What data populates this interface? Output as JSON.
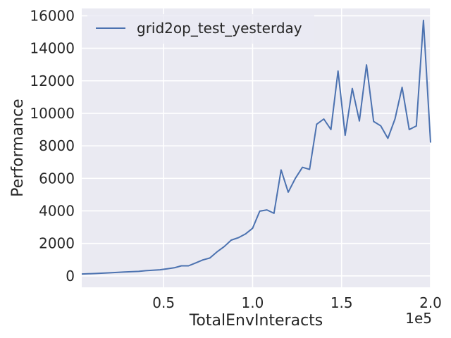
{
  "chart_data": {
    "type": "line",
    "title": "",
    "xlabel": "TotalEnvInteracts",
    "ylabel": "Performance",
    "x_offset_label": "1e5",
    "x_scale_factor": 100000,
    "xlim": [
      4000,
      200000
    ],
    "ylim": [
      -700,
      16450
    ],
    "x_ticks": [
      50000,
      100000,
      150000,
      200000
    ],
    "x_tick_labels": [
      "0.5",
      "1.0",
      "1.5",
      "2.0"
    ],
    "y_ticks": [
      0,
      2000,
      4000,
      6000,
      8000,
      10000,
      12000,
      14000,
      16000
    ],
    "y_tick_labels": [
      "0",
      "2000",
      "4000",
      "6000",
      "8000",
      "10000",
      "12000",
      "14000",
      "16000"
    ],
    "grid": true,
    "background_color": "#eaeaf2",
    "grid_color": "#ffffff",
    "legend_position": "top-left",
    "series": [
      {
        "name": "grid2op_test_yesterday",
        "color": "#4c72b0",
        "x": [
          4000,
          12000,
          20000,
          28000,
          36000,
          40000,
          48000,
          52000,
          56000,
          60000,
          64000,
          68000,
          72000,
          76000,
          80000,
          84000,
          88000,
          92000,
          96000,
          100000,
          104000,
          108000,
          112000,
          116000,
          120000,
          124000,
          128000,
          132000,
          136000,
          140000,
          144000,
          148000,
          152000,
          156000,
          160000,
          164000,
          168000,
          172000,
          176000,
          180000,
          184000,
          188000,
          192000,
          196000,
          200000
        ],
        "y": [
          120,
          150,
          190,
          240,
          280,
          320,
          380,
          440,
          500,
          620,
          620,
          800,
          980,
          1100,
          1480,
          1800,
          2200,
          2350,
          2580,
          2930,
          3980,
          4060,
          3850,
          6520,
          5150,
          6000,
          6680,
          6550,
          9330,
          9650,
          9000,
          12600,
          8650,
          11530,
          9530,
          12980,
          9500,
          9230,
          8460,
          9650,
          11600,
          9000,
          9220,
          15720,
          8200
        ]
      }
    ]
  }
}
